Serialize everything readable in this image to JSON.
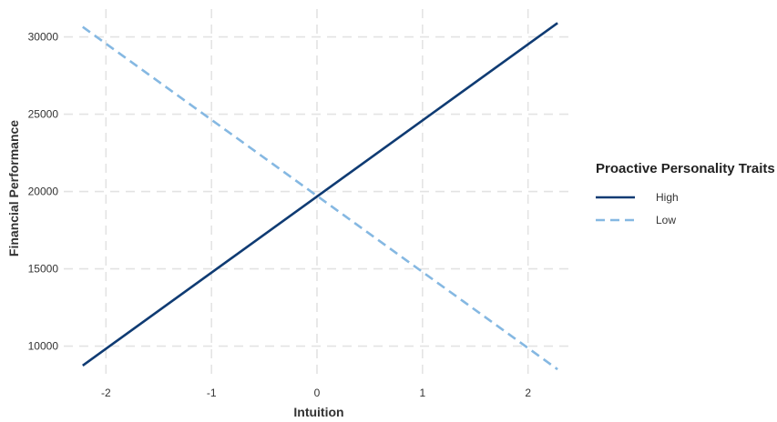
{
  "chart_data": {
    "type": "line",
    "title": "",
    "xlabel": "Intuition",
    "ylabel": "Financial Performance",
    "xlim": [
      -2.4,
      2.4
    ],
    "ylim": [
      7800,
      31800
    ],
    "x_ticks": [
      -2,
      -1,
      0,
      1,
      2
    ],
    "x_tick_labels": [
      "-2",
      "-1",
      "0",
      "1",
      "2"
    ],
    "y_ticks": [
      10000,
      15000,
      20000,
      25000,
      30000
    ],
    "y_tick_labels": [
      "10000",
      "15000",
      "20000",
      "25000",
      "30000"
    ],
    "grid": true,
    "legend": {
      "title": "Proactive Personality Traits",
      "placement": "right"
    },
    "series": [
      {
        "name": "High",
        "line_style": "solid",
        "color": "#0f3b73",
        "x": [
          -2.22,
          2.28
        ],
        "y": [
          8750,
          30900
        ]
      },
      {
        "name": "Low",
        "line_style": "dashed",
        "color": "#85b8e2",
        "x": [
          -2.22,
          2.28
        ],
        "y": [
          30650,
          8500
        ]
      }
    ]
  }
}
